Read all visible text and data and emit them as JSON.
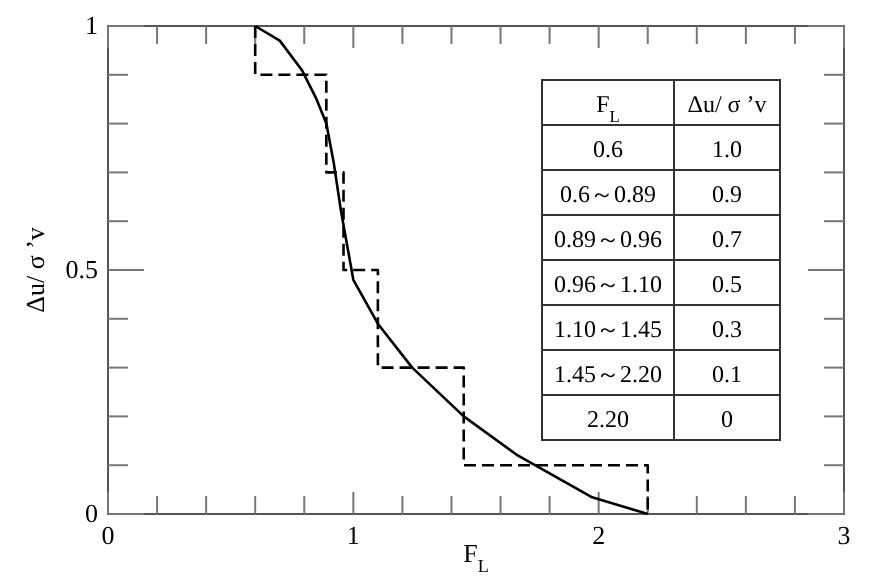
{
  "chart_data": {
    "type": "line",
    "xlabel": "F$_{L}$",
    "ylabel": "Δu/ σ ’v",
    "series": [
      {
        "color": "#000000",
        "line_style": "solid",
        "x": [
          0.6,
          0.7,
          0.79,
          0.85,
          0.89,
          0.92,
          0.95,
          1.0,
          1.1,
          1.24,
          1.45,
          1.67,
          1.97,
          2.2
        ],
        "values": [
          1.0,
          0.97,
          0.91,
          0.85,
          0.8,
          0.72,
          0.62,
          0.48,
          0.39,
          0.3,
          0.2,
          0.12,
          0.035,
          0.0
        ]
      },
      {
        "color": "#000000",
        "line_style": "dashed",
        "x": [
          0.6,
          0.6,
          0.89,
          0.89,
          0.96,
          0.96,
          1.1,
          1.1,
          1.45,
          1.45,
          2.2,
          2.2
        ],
        "values": [
          1.0,
          0.9,
          0.9,
          0.7,
          0.7,
          0.5,
          0.5,
          0.3,
          0.3,
          0.1,
          0.1,
          0.0
        ]
      }
    ],
    "xlim": [
      0,
      3
    ],
    "ylim": [
      0,
      1
    ],
    "xticks": [
      0,
      {
        "value": 0.2,
        "label": null
      },
      {
        "value": 0.4,
        "label": null
      },
      {
        "value": 0.6,
        "label": null
      },
      {
        "value": 0.8,
        "label": null
      },
      1,
      {
        "value": 1.2,
        "label": null
      },
      {
        "value": 1.4,
        "label": null
      },
      {
        "value": 1.6,
        "label": null
      },
      {
        "value": 1.8,
        "label": null
      },
      2,
      {
        "value": 2.2,
        "label": null
      },
      {
        "value": 2.4,
        "label": null
      },
      {
        "value": 2.6,
        "label": null
      },
      {
        "value": 2.8,
        "label": null
      },
      3
    ],
    "yticks": [
      0,
      {
        "value": 0.1,
        "label": null
      },
      {
        "value": 0.2,
        "label": null
      },
      {
        "value": 0.3,
        "label": null
      },
      {
        "value": 0.4,
        "label": null
      },
      0.5,
      {
        "value": 0.6,
        "label": null
      },
      {
        "value": 0.7,
        "label": null
      },
      {
        "value": 0.8,
        "label": null
      },
      {
        "value": 0.9,
        "label": null
      },
      1
    ],
    "grid": false,
    "annotations": [
      "F$_{L}$",
      "Δu/ σ ’v",
      "0.6",
      "1.0",
      "0.6～0.89",
      "0.9",
      "0.89～0.96",
      "0.7",
      "0.96～1.10",
      "0.5",
      "1.10～1.45",
      "0.3",
      "1.45～2.20",
      "0.1",
      "2.20",
      "0"
    ]
  }
}
